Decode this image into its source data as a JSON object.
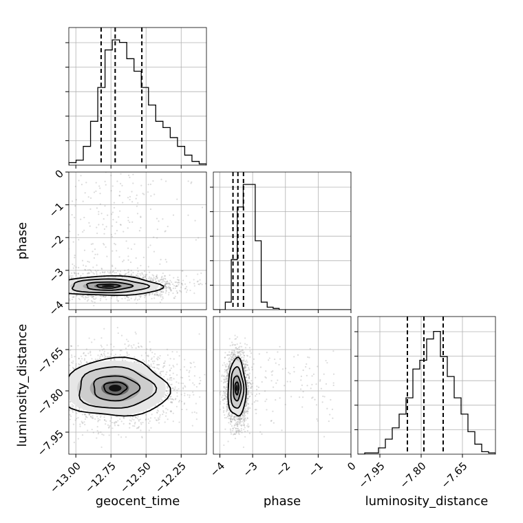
{
  "chart_data": {
    "type": "corner",
    "parameters": [
      {
        "name": "geocent_time",
        "range": [
          -13.05,
          -12.07
        ],
        "ticks": [
          -13.0,
          -12.75,
          -12.5,
          -12.25
        ],
        "tick_labels": [
          "−13.00",
          "−12.75",
          "−12.50",
          "−12.25"
        ],
        "quantiles": [
          -12.82,
          -12.72,
          -12.53
        ]
      },
      {
        "name": "phase",
        "range": [
          -4.2,
          0.0
        ],
        "ticks": [
          -4,
          -3,
          -2,
          -1,
          0
        ],
        "tick_labels": [
          "−4",
          "−3",
          "−2",
          "−1",
          "0"
        ],
        "quantiles": [
          -3.6,
          -3.45,
          -3.28
        ]
      },
      {
        "name": "luminosity_distance",
        "range": [
          -8.03,
          -7.53
        ],
        "ticks": [
          -7.95,
          -7.8,
          -7.65
        ],
        "tick_labels": [
          "−7.95",
          "−7.80",
          "−7.65"
        ],
        "quantiles": [
          -7.85,
          -7.79,
          -7.72
        ]
      }
    ],
    "histograms": {
      "geocent_time": [
        0.02,
        0.04,
        0.15,
        0.35,
        0.62,
        0.92,
        1.0,
        0.98,
        0.85,
        0.75,
        0.62,
        0.48,
        0.35,
        0.3,
        0.22,
        0.15,
        0.08,
        0.03,
        0.01
      ],
      "phase": [
        0.0,
        0.0,
        0.06,
        0.4,
        0.82,
        1.0,
        1.0,
        0.55,
        0.06,
        0.02,
        0.01,
        0.0,
        0.0,
        0.0,
        0.0,
        0.0,
        0.0,
        0.0,
        0.0,
        0.0,
        0.0,
        0.0,
        0.0
      ],
      "luminosity_distance": [
        0.0,
        0.01,
        0.01,
        0.05,
        0.12,
        0.21,
        0.32,
        0.45,
        0.68,
        0.75,
        0.92,
        0.98,
        0.78,
        0.62,
        0.45,
        0.32,
        0.18,
        0.08,
        0.02,
        0.01
      ]
    },
    "joint": [
      {
        "x": "geocent_time",
        "y": "phase",
        "center": [
          -12.77,
          -3.48
        ],
        "sigma": [
          0.18,
          0.14
        ],
        "tail_y": [
          -3.3,
          0.0
        ]
      },
      {
        "x": "geocent_time",
        "y": "luminosity_distance",
        "center": [
          -12.72,
          -7.79
        ],
        "sigma": [
          0.18,
          0.05
        ]
      },
      {
        "x": "phase",
        "y": "luminosity_distance",
        "center": [
          -3.48,
          -7.79
        ],
        "sigma": [
          0.13,
          0.05
        ],
        "tail_x": [
          -3.3,
          -0.5
        ]
      }
    ],
    "axis_labels": {
      "row_labels": [
        "phase",
        "luminosity_distance"
      ],
      "col_labels": [
        "geocent_time",
        "phase",
        "luminosity_distance"
      ]
    },
    "grid": true
  }
}
